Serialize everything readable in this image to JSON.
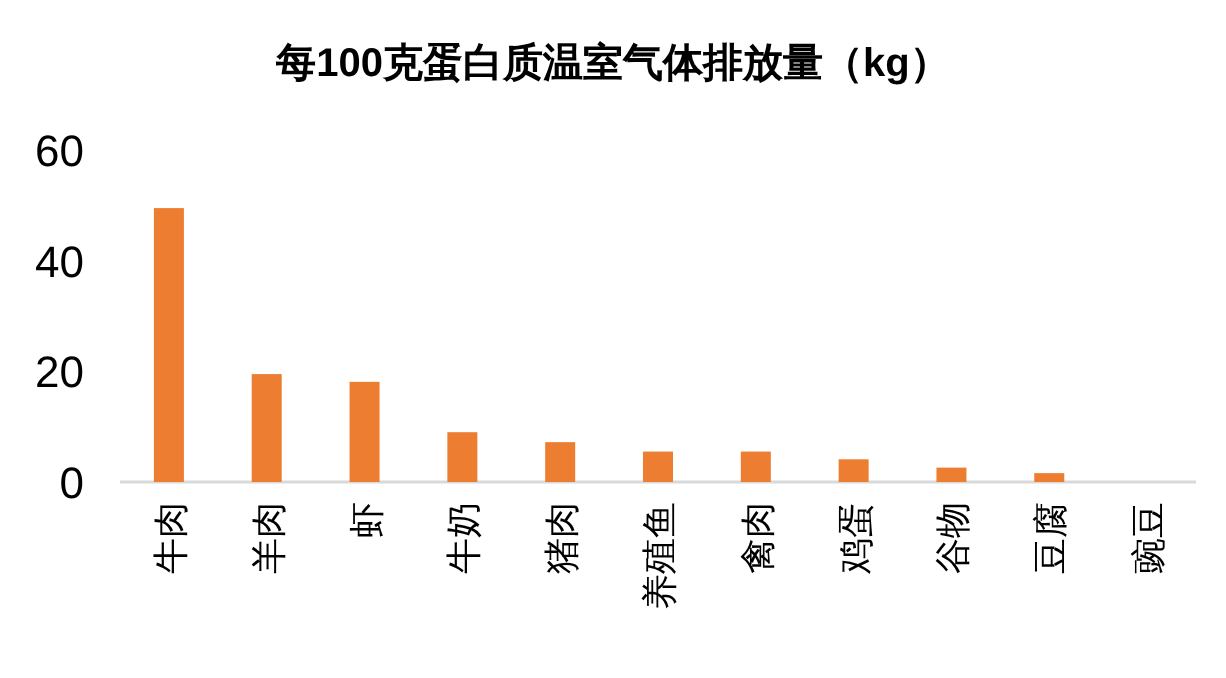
{
  "chart_data": {
    "type": "bar",
    "title": "每100克蛋白质温室气体排放量（kg）",
    "categories": [
      "牛肉",
      "羊肉",
      "虾",
      "牛奶",
      "猪肉",
      "养殖鱼",
      "禽肉",
      "鸡蛋",
      "谷物",
      "豆腐",
      "豌豆"
    ],
    "values": [
      49.5,
      19.5,
      18.1,
      9.0,
      7.2,
      5.5,
      5.5,
      4.1,
      2.6,
      1.6,
      0
    ],
    "color": "#ed7d31",
    "ylim": [
      0,
      60
    ],
    "yticks": [
      0,
      20,
      40,
      60
    ],
    "grid": false
  }
}
